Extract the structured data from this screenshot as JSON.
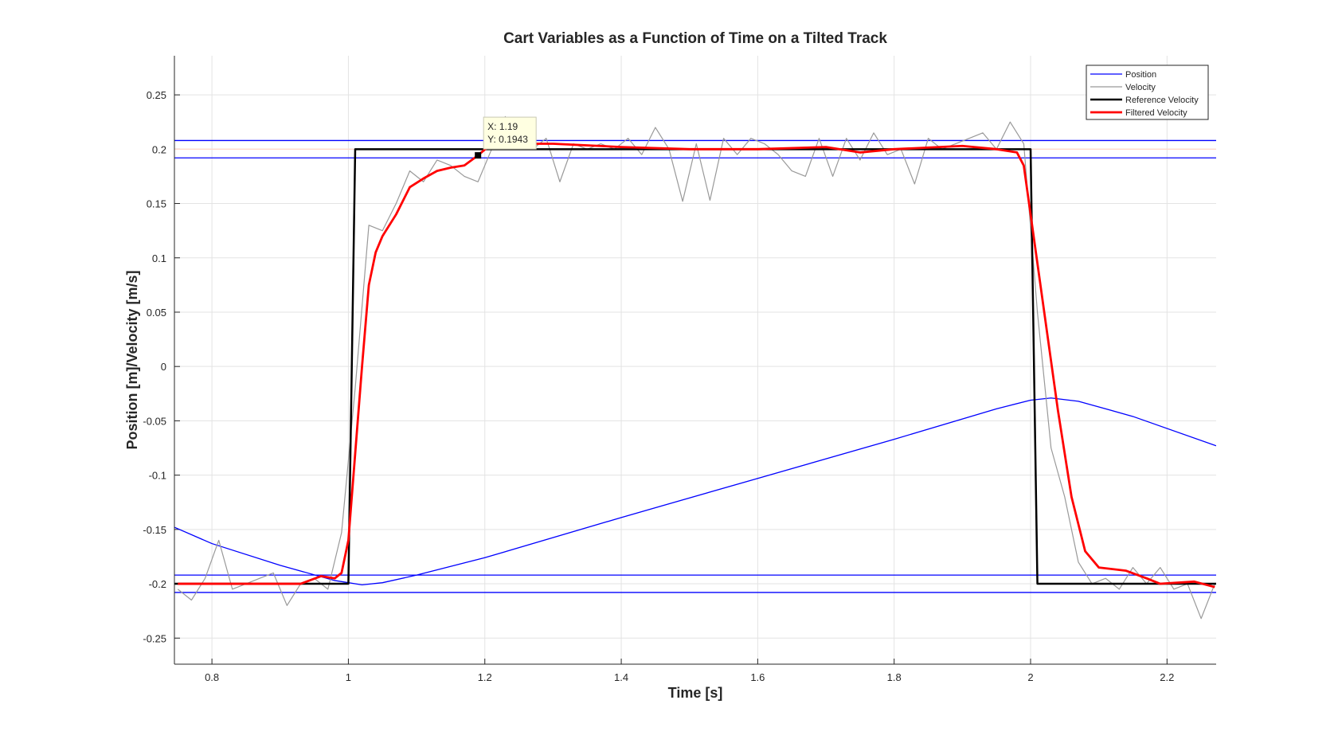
{
  "chart_data": {
    "type": "line",
    "title": "Cart Variables as a Function of Time on a Tilted Track",
    "x_label": "Time [s]",
    "y_label": "Position [m]/Velocity [m/s]",
    "xlim": [
      0.745,
      2.272
    ],
    "ylim": [
      -0.274,
      0.286
    ],
    "xticks": [
      0.8,
      1,
      1.2,
      1.4,
      1.6,
      1.8,
      2,
      2.2
    ],
    "yticks": [
      -0.25,
      -0.2,
      -0.15,
      -0.1,
      -0.05,
      0,
      0.05,
      0.1,
      0.15,
      0.2,
      0.25
    ],
    "grid": true,
    "legend_position": "northeast",
    "reference_lines": [
      {
        "value": 0.2,
        "color": "#ffd8cc"
      },
      {
        "value": 0.208,
        "color": "#0000ff"
      },
      {
        "value": 0.192,
        "color": "#0000ff"
      },
      {
        "value": -0.192,
        "color": "#0000ff"
      },
      {
        "value": -0.208,
        "color": "#0000ff"
      }
    ],
    "series": [
      {
        "name": "Position",
        "color": "#0000ff",
        "x": [
          0.745,
          0.8,
          0.9,
          0.98,
          1.02,
          1.05,
          1.1,
          1.2,
          1.4,
          1.6,
          1.8,
          1.95,
          2.0,
          2.03,
          2.07,
          2.15,
          2.272
        ],
        "values": [
          -0.148,
          -0.163,
          -0.183,
          -0.197,
          -0.201,
          -0.199,
          -0.192,
          -0.176,
          -0.139,
          -0.103,
          -0.067,
          -0.039,
          -0.031,
          -0.029,
          -0.032,
          -0.046,
          -0.073
        ]
      },
      {
        "name": "Velocity",
        "color": "#999999",
        "x": [
          0.75,
          0.77,
          0.79,
          0.81,
          0.83,
          0.85,
          0.87,
          0.89,
          0.91,
          0.93,
          0.95,
          0.97,
          0.99,
          1.01,
          1.03,
          1.05,
          1.07,
          1.09,
          1.11,
          1.13,
          1.15,
          1.17,
          1.19,
          1.21,
          1.23,
          1.25,
          1.27,
          1.29,
          1.31,
          1.33,
          1.35,
          1.37,
          1.39,
          1.41,
          1.43,
          1.45,
          1.47,
          1.49,
          1.51,
          1.53,
          1.55,
          1.57,
          1.59,
          1.61,
          1.63,
          1.65,
          1.67,
          1.69,
          1.71,
          1.73,
          1.75,
          1.77,
          1.79,
          1.81,
          1.83,
          1.85,
          1.87,
          1.89,
          1.91,
          1.93,
          1.95,
          1.97,
          1.99,
          2.01,
          2.03,
          2.05,
          2.07,
          2.09,
          2.11,
          2.13,
          2.15,
          2.17,
          2.19,
          2.21,
          2.23,
          2.25,
          2.27
        ],
        "values": [
          -0.205,
          -0.215,
          -0.195,
          -0.16,
          -0.205,
          -0.2,
          -0.195,
          -0.19,
          -0.22,
          -0.2,
          -0.195,
          -0.205,
          -0.153,
          -0.02,
          0.13,
          0.125,
          0.15,
          0.18,
          0.17,
          0.19,
          0.185,
          0.175,
          0.17,
          0.2,
          0.23,
          0.205,
          0.2,
          0.21,
          0.17,
          0.205,
          0.2,
          0.205,
          0.2,
          0.21,
          0.195,
          0.22,
          0.2,
          0.152,
          0.205,
          0.153,
          0.21,
          0.195,
          0.21,
          0.205,
          0.195,
          0.18,
          0.175,
          0.21,
          0.175,
          0.21,
          0.19,
          0.215,
          0.195,
          0.2,
          0.168,
          0.21,
          0.2,
          0.205,
          0.21,
          0.215,
          0.2,
          0.225,
          0.205,
          0.05,
          -0.075,
          -0.12,
          -0.18,
          -0.2,
          -0.195,
          -0.205,
          -0.185,
          -0.2,
          -0.185,
          -0.205,
          -0.2,
          -0.232,
          -0.2
        ]
      },
      {
        "name": "Reference Velocity",
        "color": "#000000",
        "x": [
          0.745,
          1.0,
          1.01,
          2.0,
          2.01,
          2.272
        ],
        "values": [
          -0.2,
          -0.2,
          0.2,
          0.2,
          -0.2,
          -0.2
        ]
      },
      {
        "name": "Filtered Velocity",
        "color": "#ff0000",
        "x": [
          0.75,
          0.85,
          0.93,
          0.96,
          0.98,
          0.99,
          1.0,
          1.01,
          1.02,
          1.03,
          1.04,
          1.05,
          1.07,
          1.09,
          1.11,
          1.13,
          1.15,
          1.17,
          1.19,
          1.21,
          1.3,
          1.4,
          1.5,
          1.6,
          1.7,
          1.75,
          1.8,
          1.9,
          1.95,
          1.98,
          1.99,
          2.0,
          2.02,
          2.04,
          2.06,
          2.08,
          2.1,
          2.14,
          2.17,
          2.19,
          2.24,
          2.27
        ],
        "values": [
          -0.2,
          -0.2,
          -0.2,
          -0.193,
          -0.195,
          -0.19,
          -0.16,
          -0.08,
          0.0,
          0.075,
          0.105,
          0.12,
          0.14,
          0.165,
          0.173,
          0.18,
          0.183,
          0.185,
          0.1943,
          0.205,
          0.205,
          0.202,
          0.2,
          0.2,
          0.202,
          0.197,
          0.2,
          0.203,
          0.2,
          0.197,
          0.185,
          0.14,
          0.05,
          -0.04,
          -0.12,
          -0.17,
          -0.185,
          -0.188,
          -0.195,
          -0.2,
          -0.198,
          -0.203
        ]
      }
    ],
    "datatip": {
      "x": 1.19,
      "y": 0.1943,
      "lines": [
        "X: 1.19",
        "Y: 0.1943"
      ]
    }
  }
}
